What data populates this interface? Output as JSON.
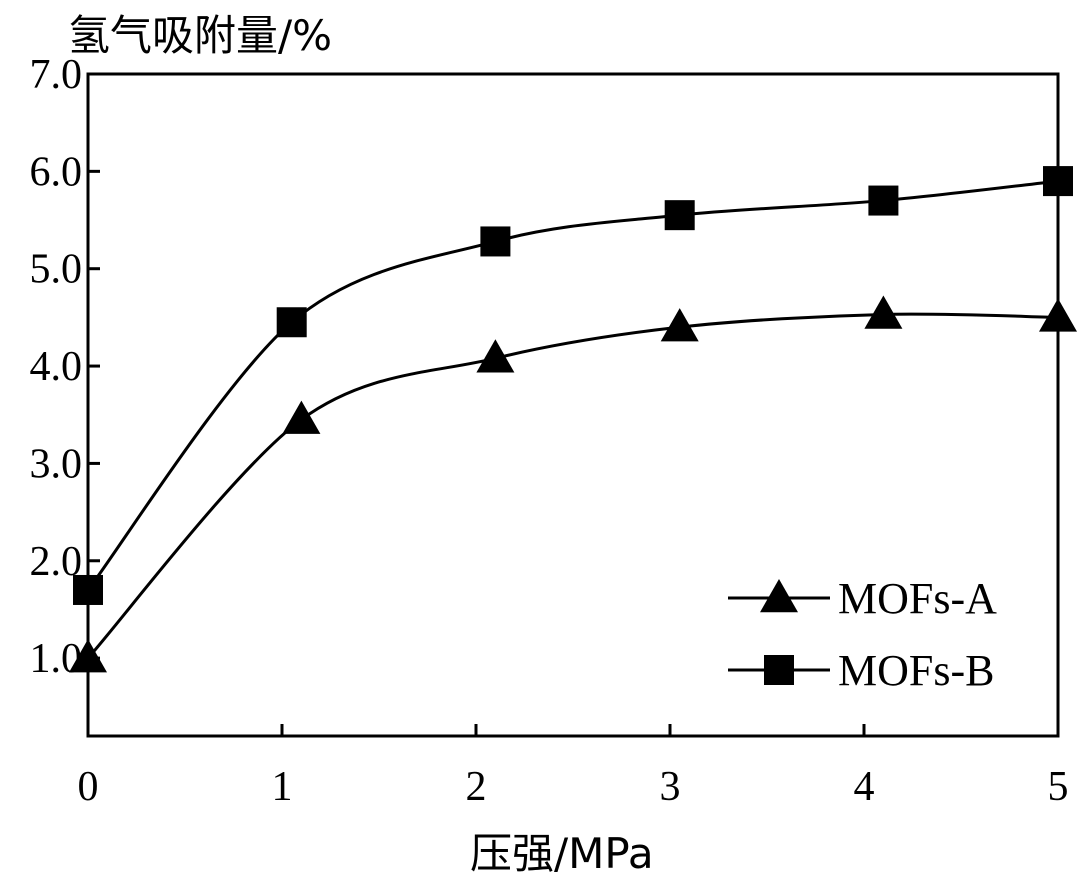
{
  "chart_data": {
    "type": "line",
    "ylabel": "氢气吸附量/%",
    "xlabel": "压强/MPa",
    "xlim": [
      0,
      5
    ],
    "ylim": [
      0.2,
      7.0
    ],
    "x_ticks": [
      "0",
      "1",
      "2",
      "3",
      "4",
      "5"
    ],
    "y_ticks": [
      "1.0",
      "2.0",
      "3.0",
      "4.0",
      "5.0",
      "6.0",
      "7.0"
    ],
    "grid": false,
    "legend_position": "bottom-right",
    "series": [
      {
        "name": "MOFs-A",
        "marker": "triangle",
        "x": [
          0,
          1.1,
          2.1,
          3.05,
          4.1,
          5.0
        ],
        "y": [
          1.0,
          3.45,
          4.08,
          4.4,
          4.53,
          4.5
        ]
      },
      {
        "name": "MOFs-B",
        "marker": "square",
        "x": [
          0,
          1.05,
          2.1,
          3.05,
          4.1,
          5.0
        ],
        "y": [
          1.7,
          4.45,
          5.28,
          5.55,
          5.7,
          5.9
        ]
      }
    ]
  }
}
